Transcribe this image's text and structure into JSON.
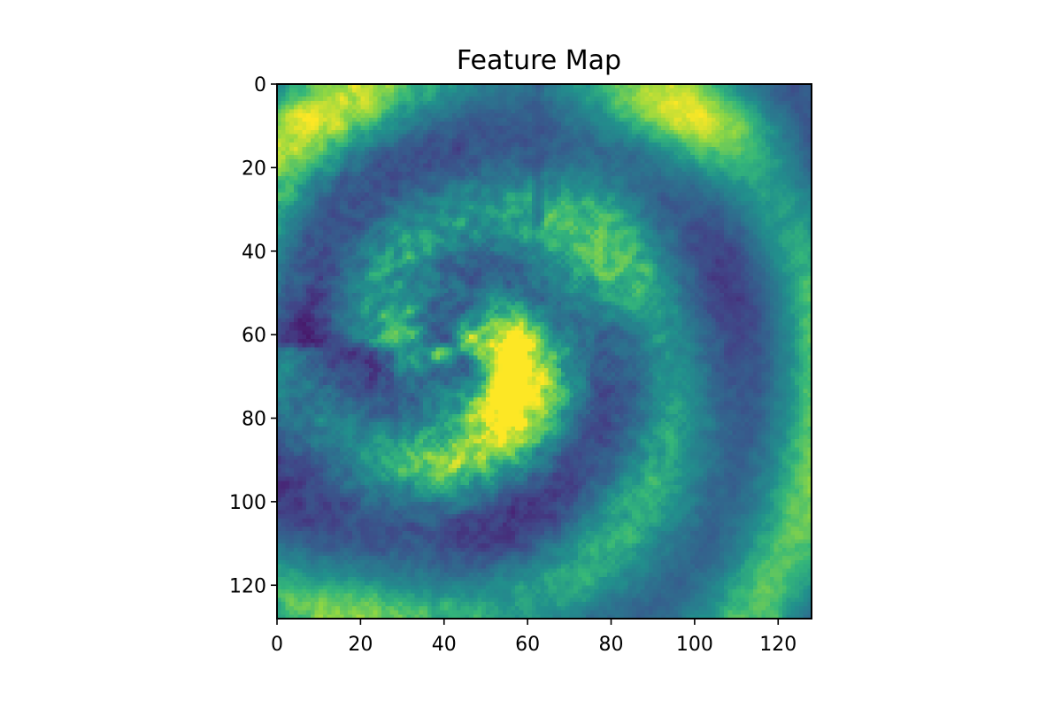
{
  "chart_data": {
    "type": "heatmap",
    "title": "Feature Map",
    "xlabel": "",
    "ylabel": "",
    "x_range": [
      0,
      128
    ],
    "y_range": [
      0,
      128
    ],
    "y_inverted": true,
    "x_ticks": [
      0,
      20,
      40,
      60,
      80,
      100,
      120
    ],
    "y_ticks": [
      0,
      20,
      40,
      60,
      80,
      100,
      120
    ],
    "grid": false,
    "colormap": "viridis",
    "value_range": [
      0,
      1
    ],
    "grid_shape": [
      128,
      128
    ],
    "features": {
      "background_level": 0.55,
      "spiral_center": [
        43,
        63
      ],
      "bright_core_center": [
        66,
        78
      ],
      "vertical_line_x": 62,
      "vertical_line_y_end": 33
    }
  }
}
